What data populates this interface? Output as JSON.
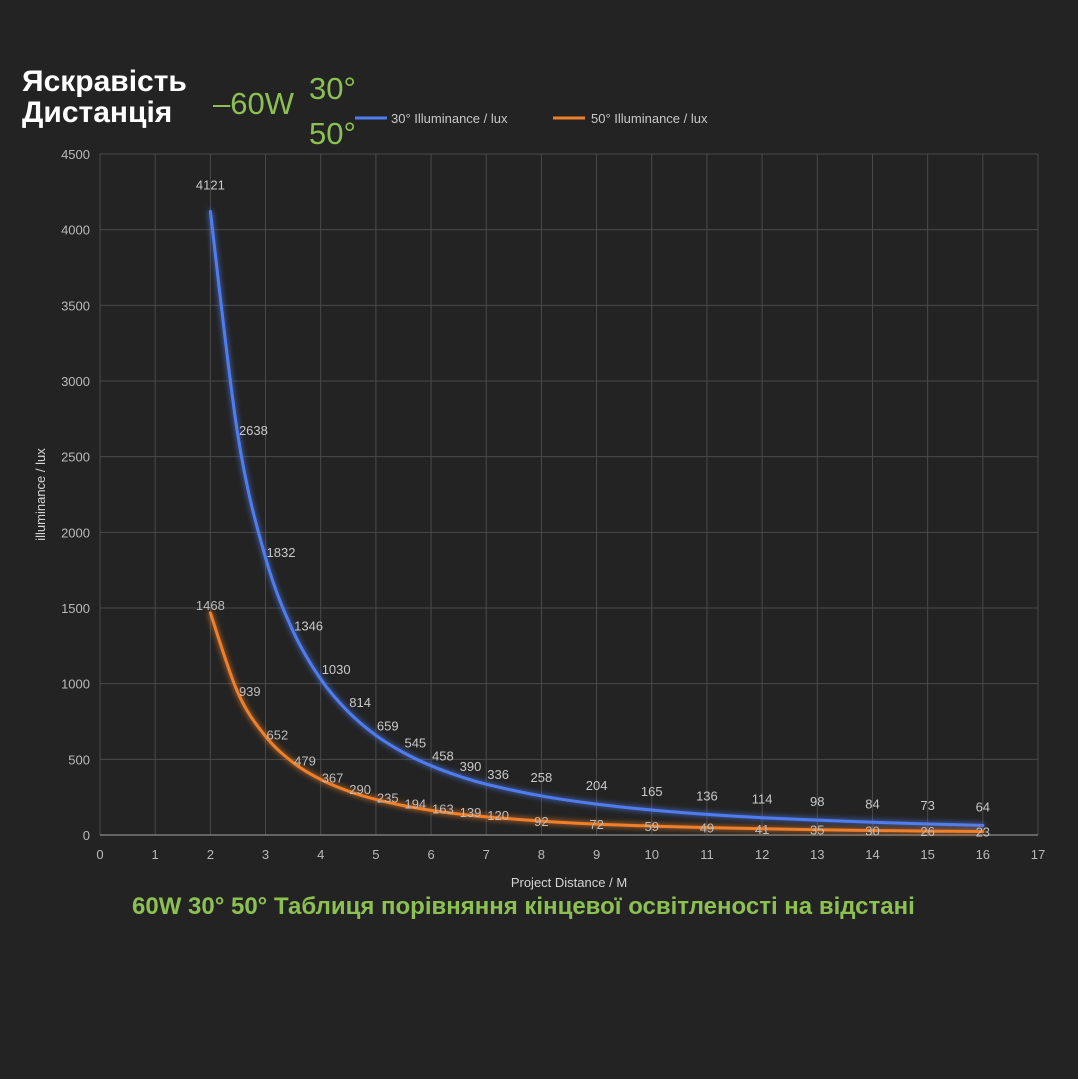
{
  "overlay": {
    "title_line1": "Яскравість",
    "title_line2": "Дистанція",
    "power": "–60W",
    "angle_a": "30°",
    "angle_b": "50°"
  },
  "caption": "60W 30° 50° Таблиця порівняння кінцевої освітленості на відстані",
  "colors": {
    "background": "#232323",
    "grid": "#4a4a4a",
    "series_30": "#4f7df0",
    "series_50": "#f07f2a",
    "accent_green": "#8cc152"
  },
  "chart_data": {
    "type": "line",
    "xlabel": "Project Distance / M",
    "ylabel": "illuminance / lux",
    "xlim": [
      0,
      17
    ],
    "ylim": [
      0,
      4500
    ],
    "x_ticks": [
      0,
      1,
      2,
      3,
      4,
      5,
      6,
      7,
      8,
      9,
      10,
      11,
      12,
      13,
      14,
      15,
      16,
      17
    ],
    "y_ticks": [
      0,
      500,
      1000,
      1500,
      2000,
      2500,
      3000,
      3500,
      4000,
      4500
    ],
    "grid": true,
    "legend_position": "top",
    "series": [
      {
        "name": "30° Illuminance / lux",
        "x": [
          2,
          2.5,
          3,
          3.5,
          4,
          4.5,
          5,
          5.5,
          6,
          6.5,
          7,
          8,
          9,
          10,
          11,
          12,
          13,
          14,
          15,
          16
        ],
        "y": [
          4121,
          2638,
          1832,
          1346,
          1030,
          814,
          659,
          545,
          458,
          390,
          336,
          258,
          204,
          165,
          136,
          114,
          98,
          84,
          73,
          64
        ]
      },
      {
        "name": "50° Illuminance / lux",
        "x": [
          2,
          2.5,
          3,
          3.5,
          4,
          4.5,
          5,
          5.5,
          6,
          6.5,
          7,
          8,
          9,
          10,
          11,
          12,
          13,
          14,
          15,
          16
        ],
        "y": [
          1468,
          939,
          652,
          479,
          367,
          290,
          235,
          194,
          163,
          139,
          120,
          92,
          72,
          59,
          49,
          41,
          35,
          30,
          26,
          23
        ]
      }
    ]
  }
}
